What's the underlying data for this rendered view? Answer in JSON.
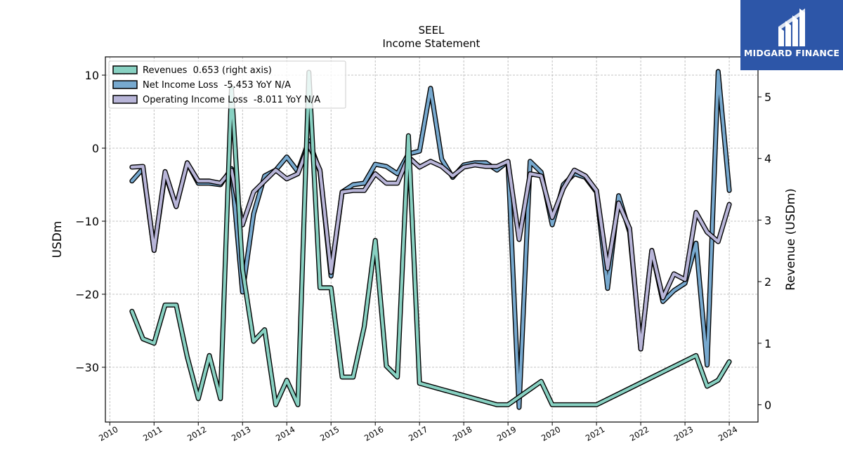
{
  "brand": {
    "name": "MIDGARD FINANCE",
    "bg": "#2d56a8"
  },
  "chart_data": {
    "type": "line",
    "title": "SEEL",
    "subtitle": "Income Statement",
    "ylabel_left": "USDm",
    "ylabel_right": "Revenue (USDm)",
    "ylim_left": [
      -37.5,
      12.5
    ],
    "ylim_right": [
      -0.28,
      5.65
    ],
    "xlim": [
      2009.9,
      2024.65
    ],
    "x_ticks": [
      "2010",
      "2011",
      "2012",
      "2013",
      "2014",
      "2015",
      "2016",
      "2017",
      "2018",
      "2019",
      "2020",
      "2021",
      "2022",
      "2023",
      "2024"
    ],
    "y_ticks_left": [
      10,
      0,
      -10,
      -20,
      -30
    ],
    "y_ticks_left_labels": [
      "10",
      "0",
      "−10",
      "−20",
      "−30"
    ],
    "y_ticks_right": [
      5,
      4,
      3,
      2,
      1,
      0
    ],
    "y_ticks_right_labels": [
      "5",
      "4",
      "3",
      "2",
      "1",
      "0"
    ],
    "grid": true,
    "legend_position": "top-left",
    "series": [
      {
        "name": "Revenues  0.653 (right axis)",
        "axis": "right",
        "color": "#88d1c2",
        "x": [
          2010.5,
          2010.75,
          2011.0,
          2011.25,
          2011.5,
          2011.75,
          2012.0,
          2012.25,
          2012.5,
          2012.75,
          2013.0,
          2013.25,
          2013.5,
          2013.75,
          2014.0,
          2014.25,
          2014.5,
          2014.75,
          2015.0,
          2015.25,
          2015.5,
          2015.75,
          2016.0,
          2016.25,
          2016.5,
          2016.75,
          2017.0,
          2018.75,
          2019.0,
          2019.75,
          2020.0,
          2021.0,
          2023.25,
          2023.5,
          2023.75,
          2024.0
        ],
        "values": [
          1.52,
          1.07,
          1.0,
          1.62,
          1.62,
          0.78,
          0.1,
          0.8,
          0.1,
          5.15,
          2.2,
          1.03,
          1.22,
          0.0,
          0.4,
          0.0,
          5.4,
          1.9,
          1.9,
          0.45,
          0.45,
          1.27,
          2.67,
          0.63,
          0.45,
          4.37,
          0.35,
          0.0,
          0.0,
          0.38,
          0.0,
          0.0,
          0.8,
          0.3,
          0.4,
          0.7
        ]
      },
      {
        "name": "Net Income Loss  -5.453 YoY N/A",
        "axis": "left",
        "color": "#77a9cf",
        "x": [
          2010.5,
          2010.75,
          2011.0,
          2011.25,
          2011.5,
          2011.75,
          2012.0,
          2012.25,
          2012.5,
          2012.75,
          2013.0,
          2013.25,
          2013.5,
          2013.75,
          2014.0,
          2014.25,
          2014.5,
          2014.75,
          2015.0,
          2015.25,
          2015.5,
          2015.75,
          2016.0,
          2016.25,
          2016.5,
          2016.75,
          2017.0,
          2017.25,
          2017.5,
          2017.75,
          2018.0,
          2018.25,
          2018.5,
          2018.75,
          2019.0,
          2019.25,
          2019.5,
          2019.75,
          2020.0,
          2020.25,
          2020.5,
          2020.75,
          2021.0,
          2021.25,
          2021.5,
          2021.75,
          2022.0,
          2022.25,
          2022.5,
          2022.75,
          2023.0,
          2023.25,
          2023.5,
          2023.75,
          2024.0
        ],
        "values": [
          -4.5,
          -2.8,
          -14.0,
          -3.5,
          -8.0,
          -2.0,
          -4.8,
          -4.8,
          -5.0,
          -2.8,
          -19.7,
          -9.0,
          -3.8,
          -3.0,
          -1.2,
          -3.2,
          1.0,
          -3.2,
          -17.5,
          -6.0,
          -5.0,
          -4.8,
          -2.2,
          -2.5,
          -3.5,
          -0.8,
          -0.4,
          8.2,
          -1.5,
          -4.0,
          -2.3,
          -2.0,
          -2.0,
          -3.0,
          -1.8,
          -35.5,
          -1.8,
          -3.3,
          -10.5,
          -5.0,
          -3.5,
          -4.0,
          -6.0,
          -19.2,
          -6.5,
          -11.5,
          -27.5,
          -14.0,
          -21.0,
          -19.5,
          -18.5,
          -13.0,
          -29.7,
          10.5,
          -5.8
        ]
      },
      {
        "name": "Operating Income Loss  -8.011 YoY N/A",
        "axis": "left",
        "color": "#b8b5d8",
        "x": [
          2010.5,
          2010.75,
          2011.0,
          2011.25,
          2011.5,
          2011.75,
          2012.0,
          2012.25,
          2012.5,
          2012.75,
          2013.0,
          2013.25,
          2013.5,
          2013.75,
          2014.0,
          2014.25,
          2014.5,
          2014.75,
          2015.0,
          2015.25,
          2015.5,
          2015.75,
          2016.0,
          2016.25,
          2016.5,
          2016.75,
          2017.0,
          2017.25,
          2017.5,
          2017.75,
          2018.0,
          2018.25,
          2018.5,
          2018.75,
          2019.0,
          2019.25,
          2019.5,
          2019.75,
          2020.0,
          2020.25,
          2020.5,
          2020.75,
          2021.0,
          2021.25,
          2021.5,
          2021.75,
          2022.0,
          2022.25,
          2022.5,
          2022.75,
          2023.0,
          2023.25,
          2023.5,
          2023.75,
          2024.0
        ],
        "values": [
          -2.6,
          -2.5,
          -14.0,
          -3.2,
          -8.0,
          -2.0,
          -4.5,
          -4.5,
          -4.8,
          -3.0,
          -10.5,
          -6.0,
          -4.5,
          -3.0,
          -4.2,
          -3.5,
          0.5,
          -3.0,
          -17.0,
          -6.0,
          -5.8,
          -5.8,
          -3.5,
          -4.8,
          -4.8,
          -1.2,
          -2.6,
          -1.8,
          -2.5,
          -3.8,
          -2.6,
          -2.3,
          -2.5,
          -2.5,
          -1.8,
          -12.5,
          -3.5,
          -3.8,
          -9.5,
          -5.5,
          -3.0,
          -3.8,
          -5.8,
          -16.5,
          -7.5,
          -11.0,
          -27.5,
          -14.0,
          -20.5,
          -17.2,
          -18.0,
          -8.8,
          -11.5,
          -12.8,
          -7.7
        ]
      }
    ]
  }
}
